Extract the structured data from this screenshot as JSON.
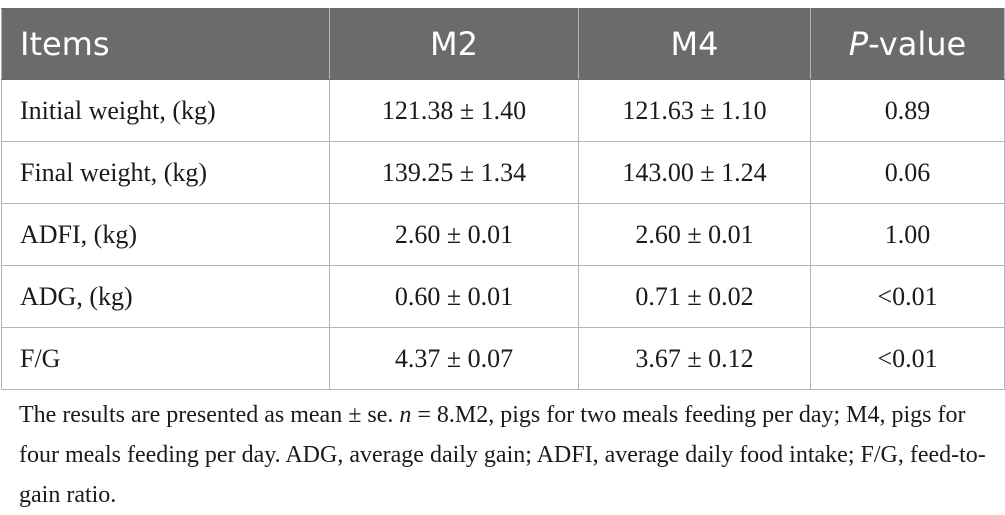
{
  "table": {
    "headers": {
      "items": "Items",
      "m2": "M2",
      "m4": "M4",
      "p_italic": "P",
      "p_rest": "-value"
    },
    "rows": [
      {
        "item": "Initial weight, (kg)",
        "m2": "121.38 ± 1.40",
        "m4": "121.63 ± 1.10",
        "p": "0.89"
      },
      {
        "item": "Final weight, (kg)",
        "m2": "139.25 ± 1.34",
        "m4": "143.00 ± 1.24",
        "p": "0.06"
      },
      {
        "item": "ADFI, (kg)",
        "m2": "2.60 ± 0.01",
        "m4": "2.60 ± 0.01",
        "p": "1.00"
      },
      {
        "item": "ADG, (kg)",
        "m2": "0.60 ± 0.01",
        "m4": "0.71 ± 0.02",
        "p": "<0.01"
      },
      {
        "item": "F/G",
        "m2": "4.37 ± 0.07",
        "m4": "3.67 ± 0.12",
        "p": "<0.01"
      }
    ]
  },
  "footnote": {
    "part1": "The results are presented as mean ± se. ",
    "n_symbol": "n",
    "part2": " = 8.M2, pigs for two meals feeding per day; M4, pigs for four meals feeding per day. ADG, average daily gain; ADFI, average daily food intake; F/G, feed-to-gain ratio."
  },
  "colors": {
    "header_bg": "#6b6b6b",
    "header_text": "#ffffff",
    "grid_line": "#b5b5b5",
    "body_text": "#1a1a1a"
  }
}
